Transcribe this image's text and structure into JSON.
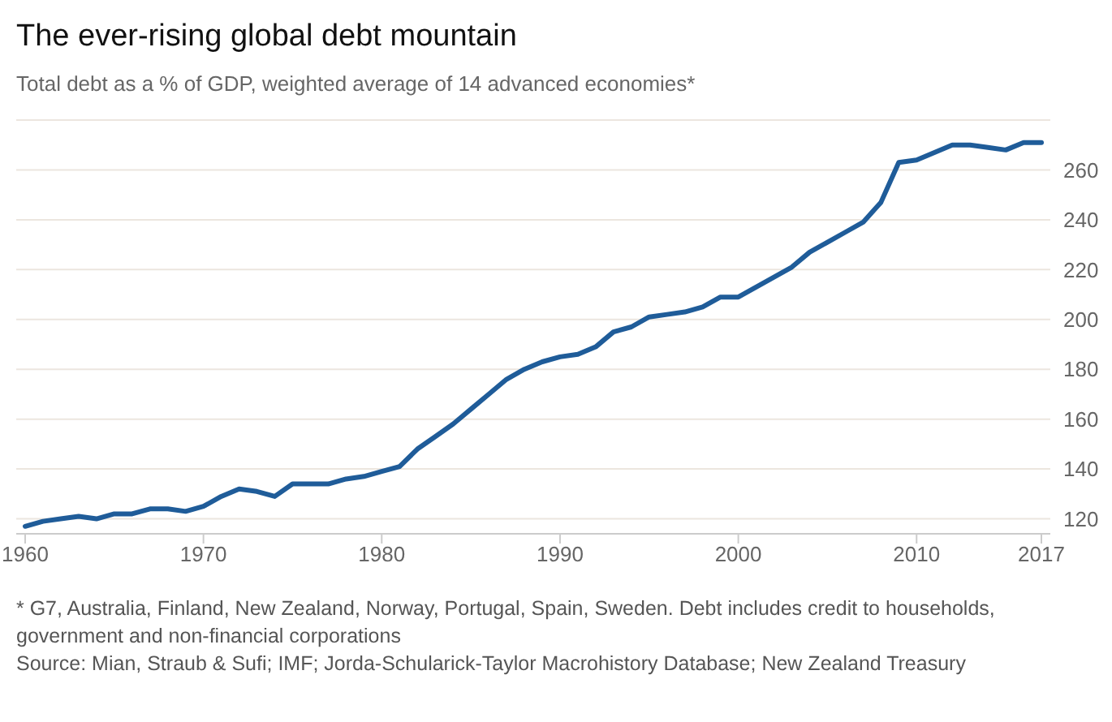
{
  "chart_data": {
    "type": "line",
    "title": "The ever-rising global debt mountain",
    "subtitle": "Total debt as a % of GDP, weighted average of 14 advanced economies*",
    "x": [
      1960,
      1961,
      1962,
      1963,
      1964,
      1965,
      1966,
      1967,
      1968,
      1969,
      1970,
      1971,
      1972,
      1973,
      1974,
      1975,
      1976,
      1977,
      1978,
      1979,
      1980,
      1981,
      1982,
      1983,
      1984,
      1985,
      1986,
      1987,
      1988,
      1989,
      1990,
      1991,
      1992,
      1993,
      1994,
      1995,
      1996,
      1997,
      1998,
      1999,
      2000,
      2001,
      2002,
      2003,
      2004,
      2005,
      2006,
      2007,
      2008,
      2009,
      2010,
      2011,
      2012,
      2013,
      2014,
      2015,
      2016,
      2017
    ],
    "series": [
      {
        "color": "#1f5c99",
        "values": [
          117,
          119,
          120,
          121,
          120,
          122,
          122,
          124,
          124,
          123,
          125,
          129,
          132,
          131,
          129,
          134,
          134,
          134,
          136,
          137,
          139,
          141,
          148,
          153,
          158,
          164,
          170,
          176,
          180,
          183,
          185,
          186,
          189,
          195,
          197,
          201,
          202,
          203,
          205,
          209,
          209,
          213,
          217,
          221,
          227,
          231,
          235,
          239,
          247,
          263,
          264,
          267,
          270,
          270,
          269,
          268,
          271,
          271
        ]
      }
    ],
    "xlim": [
      1959.5,
      2017.5
    ],
    "xticks": [
      1960,
      1970,
      1980,
      1990,
      2000,
      2010,
      2017
    ],
    "ylim": [
      114,
      280
    ],
    "yticks": [
      120,
      140,
      160,
      180,
      200,
      220,
      240,
      260
    ],
    "grid": "y",
    "legend": false,
    "marker": "none",
    "line_style": "solid",
    "annotations": [
      "* G7, Australia, Finland, New Zealand, Norway, Portugal, Spain, Sweden. Debt includes credit to households, government and non-financial corporations",
      "Source: Mian, Straub & Sufi; IMF; Jorda-Schularick-Taylor Macrohistory Database; New Zealand Treasury"
    ]
  }
}
